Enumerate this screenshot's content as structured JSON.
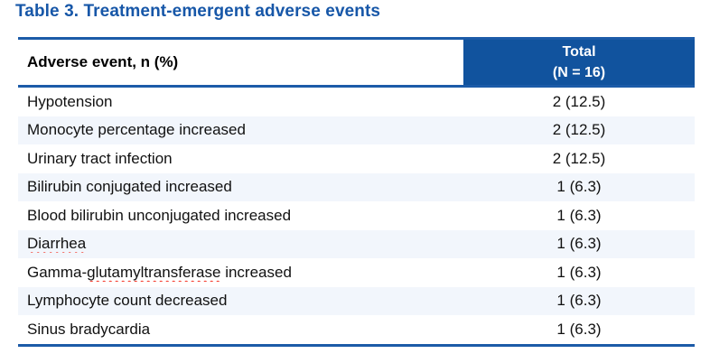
{
  "title": "Table 3. Treatment-emergent adverse events",
  "header": {
    "event_col": "Adverse event, n (%)",
    "total_line1": "Total",
    "total_line2": "(N = 16)"
  },
  "rows": [
    {
      "event": "Hypotension",
      "value": "2 (12.5)"
    },
    {
      "event": "Monocyte percentage increased",
      "value": "2 (12.5)"
    },
    {
      "event": "Urinary tract infection",
      "value": "2 (12.5)"
    },
    {
      "event": "Bilirubin conjugated increased",
      "value": "1 (6.3)"
    },
    {
      "event": "Blood bilirubin unconjugated increased",
      "value": "1 (6.3)"
    },
    {
      "event": "",
      "misspelled": "Diarrhea",
      "rest": "",
      "value": "1 (6.3)"
    },
    {
      "event": "Gamma-",
      "misspelled": "glutamyltransferase",
      "rest": " increased",
      "value": "1 (6.3)"
    },
    {
      "event": "Lymphocyte count decreased",
      "value": "1 (6.3)"
    },
    {
      "event": "Sinus bradycardia",
      "value": "1 (6.3)"
    }
  ],
  "colors": {
    "accent_blue": "#11539E",
    "line_blue": "#1C5BA8",
    "title_blue": "#1757A8",
    "row_alt": "#F2F6FC",
    "squiggle_red": "#F42E1F",
    "text_black": "#111111"
  },
  "chart_data": {
    "type": "table",
    "title": "Table 3. Treatment-emergent adverse events",
    "columns": [
      "Adverse event, n (%)",
      "Total (N = 16)"
    ],
    "categories": [
      "Hypotension",
      "Monocyte percentage increased",
      "Urinary tract infection",
      "Bilirubin conjugated increased",
      "Blood bilirubin unconjugated increased",
      "Diarrhea",
      "Gamma-glutamyltransferase increased",
      "Lymphocyte count decreased",
      "Sinus bradycardia"
    ],
    "values": [
      "2 (12.5)",
      "2 (12.5)",
      "2 (12.5)",
      "1 (6.3)",
      "1 (6.3)",
      "1 (6.3)",
      "1 (6.3)",
      "1 (6.3)",
      "1 (6.3)"
    ]
  }
}
